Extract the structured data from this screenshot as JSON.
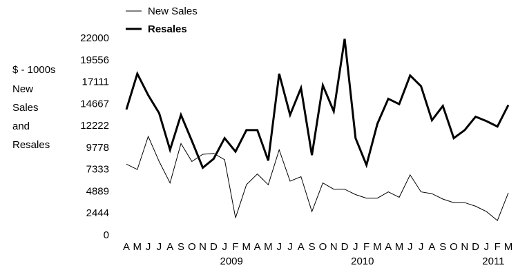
{
  "chart_data": {
    "type": "line",
    "ylabel": [
      "$ - 1000s",
      "New",
      "Sales",
      "and",
      "Resales"
    ],
    "yticks": [
      "0",
      "2444",
      "4889",
      "7333",
      "9778",
      "12222",
      "14667",
      "17111",
      "19556",
      "22000"
    ],
    "ylim": [
      0,
      22000
    ],
    "grid": false,
    "legend_position": "top",
    "x": [
      "A",
      "M",
      "J",
      "J",
      "A",
      "S",
      "O",
      "N",
      "D",
      "J",
      "F",
      "M",
      "A",
      "M",
      "J",
      "J",
      "A",
      "S",
      "O",
      "N",
      "D",
      "J",
      "F",
      "M",
      "A",
      "M",
      "J",
      "J",
      "A",
      "S",
      "O",
      "N",
      "D",
      "J",
      "F",
      "M"
    ],
    "year_labels": [
      {
        "label": "2009",
        "index": 9
      },
      {
        "label": "2010",
        "index": 21
      },
      {
        "label": "2011",
        "index": 33
      }
    ],
    "series": [
      {
        "name": "New Sales",
        "color": "#000000",
        "style": "thin",
        "values": [
          7900,
          7300,
          11000,
          8200,
          5800,
          10200,
          8200,
          9000,
          9100,
          8400,
          1900,
          5600,
          6800,
          5600,
          9500,
          6000,
          6500,
          2600,
          5800,
          5100,
          5100,
          4500,
          4100,
          4100,
          4800,
          4200,
          6700,
          4800,
          4600,
          4000,
          3600,
          3600,
          3200,
          2600,
          1600,
          4700
        ]
      },
      {
        "name": "Resales",
        "color": "#000000",
        "style": "bold",
        "values": [
          14000,
          18000,
          15600,
          13600,
          9500,
          13400,
          10500,
          7500,
          8500,
          10800,
          9300,
          11700,
          11700,
          8300,
          18000,
          13400,
          16400,
          8900,
          16700,
          13800,
          21900,
          10800,
          7800,
          12400,
          15200,
          14600,
          17800,
          16600,
          12800,
          14400,
          10800,
          11700,
          13200,
          12700,
          12100,
          14500
        ]
      }
    ]
  }
}
